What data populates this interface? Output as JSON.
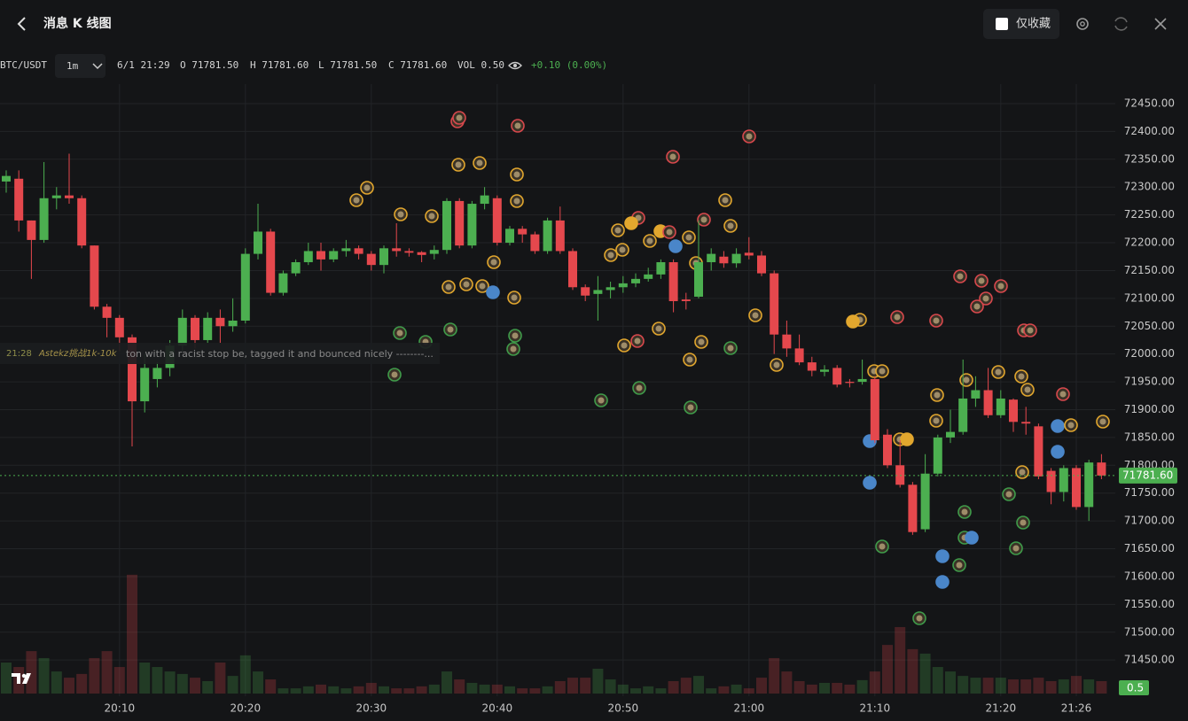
{
  "header": {
    "title": "消息 K 线图",
    "favorites_only": "仅收藏"
  },
  "toolbar": {
    "symbol": "BTC/USDT",
    "interval": "1m",
    "time": "6/1 21:29",
    "open": "O 71781.50",
    "high": "H 71781.60",
    "low": "L 71781.50",
    "close": "C 71781.60",
    "volume": "VOL 0.50",
    "change": "+0.10 (0.00%)"
  },
  "tooltip": {
    "time": "21:28",
    "author": "Astekz挑战1k-10k",
    "text": "ton with a racist stop be, tagged it and bounced nicely --------..."
  },
  "chart_data": {
    "type": "candlestick",
    "categories": [
      null,
      null,
      null,
      null,
      null,
      null,
      null,
      null,
      null,
      "20:10",
      null,
      null,
      null,
      null,
      null,
      null,
      null,
      null,
      null,
      "20:20",
      null,
      null,
      null,
      null,
      null,
      null,
      null,
      null,
      null,
      "20:30",
      null,
      null,
      null,
      null,
      null,
      null,
      null,
      null,
      null,
      "20:40",
      null,
      null,
      null,
      null,
      null,
      null,
      null,
      null,
      null,
      "20:50",
      null,
      null,
      null,
      null,
      null,
      null,
      null,
      null,
      null,
      "21:00",
      null,
      null,
      null,
      null,
      null,
      null,
      null,
      null,
      null,
      "21:10",
      null,
      null,
      null,
      null,
      null,
      null,
      null,
      null,
      null,
      "21:20",
      null,
      null,
      null,
      null,
      null,
      "21:26",
      null,
      null
    ],
    "open": [
      72310,
      72315,
      72240,
      72205,
      72280,
      72285,
      72280,
      72195,
      72085,
      72065,
      72030,
      71915,
      71955,
      71975,
      72015,
      72065,
      72025,
      72065,
      72050,
      72060,
      72180,
      72220,
      72110,
      72145,
      72165,
      72185,
      72170,
      72185,
      72190,
      72180,
      72160,
      72190,
      72185,
      72183,
      72180,
      72187,
      72275,
      72195,
      72270,
      72280,
      72200,
      72225,
      72215,
      72185,
      72240,
      72185,
      72120,
      72108,
      72115,
      72120,
      72127,
      72135,
      72143,
      72165,
      72098,
      72103,
      72165,
      72175,
      72163,
      72182,
      72177,
      72145,
      72035,
      72010,
      71985,
      71968,
      71975,
      71950,
      71950,
      71955,
      71855,
      71800,
      71765,
      71685,
      71785,
      71850,
      71860,
      71920,
      71935,
      71890,
      71918,
      71878,
      71870,
      71790,
      71752,
      71795,
      71725,
      71805
    ],
    "high": [
      72330,
      72330,
      72240,
      72345,
      72300,
      72360,
      72285,
      72195,
      72090,
      72070,
      72035,
      72000,
      71985,
      72025,
      72080,
      72070,
      72075,
      72080,
      72100,
      72190,
      72270,
      72225,
      72150,
      72170,
      72200,
      72200,
      72190,
      72205,
      72195,
      72185,
      72195,
      72235,
      72190,
      72185,
      72195,
      72280,
      72280,
      72275,
      72300,
      72285,
      72230,
      72230,
      72220,
      72245,
      72265,
      72190,
      72125,
      72140,
      72130,
      72140,
      72145,
      72155,
      72170,
      72170,
      72110,
      72240,
      72190,
      72185,
      72190,
      72210,
      72185,
      72150,
      72060,
      72035,
      71995,
      71980,
      71980,
      71955,
      71990,
      71960,
      71865,
      71845,
      71770,
      71820,
      71855,
      71900,
      71990,
      71960,
      71975,
      71935,
      71920,
      71905,
      71875,
      71795,
      71800,
      71800,
      71810,
      71820
    ],
    "low": [
      72290,
      72220,
      72135,
      72200,
      72260,
      72270,
      72190,
      72080,
      72030,
      72005,
      71834,
      71895,
      71940,
      71960,
      72005,
      72010,
      72020,
      72020,
      72040,
      72055,
      72170,
      72105,
      72105,
      72140,
      72160,
      72150,
      72165,
      72175,
      72170,
      72150,
      72145,
      72175,
      72175,
      72165,
      72170,
      72180,
      72190,
      72190,
      72260,
      72195,
      72195,
      72200,
      72180,
      72180,
      72180,
      72115,
      72095,
      72060,
      72100,
      72110,
      72120,
      72130,
      72135,
      72075,
      72080,
      72100,
      72150,
      72155,
      72155,
      72170,
      72140,
      72000,
      71995,
      71980,
      71960,
      71960,
      71940,
      71940,
      71945,
      71840,
      71795,
      71760,
      71675,
      71680,
      71780,
      71840,
      71855,
      71905,
      71885,
      71885,
      71860,
      71855,
      71775,
      71730,
      71735,
      71720,
      71700,
      71775
    ],
    "close": [
      72320,
      72240,
      72205,
      72280,
      72285,
      72280,
      72195,
      72085,
      72065,
      72030,
      71915,
      71975,
      71975,
      72015,
      72065,
      72025,
      72065,
      72050,
      72060,
      72180,
      72220,
      72110,
      72145,
      72165,
      72185,
      72170,
      72185,
      72190,
      72180,
      72160,
      72190,
      72185,
      72182,
      72178,
      72187,
      72275,
      72195,
      72270,
      72285,
      72200,
      72225,
      72215,
      72185,
      72240,
      72185,
      72120,
      72105,
      72115,
      72120,
      72127,
      72135,
      72143,
      72165,
      72095,
      72095,
      72165,
      72180,
      72163,
      72180,
      72177,
      72145,
      72035,
      72010,
      71985,
      71970,
      71972,
      71945,
      71948,
      71955,
      71845,
      71800,
      71765,
      71680,
      71785,
      71850,
      71860,
      71920,
      71935,
      71890,
      71920,
      71878,
      71875,
      71780,
      71752,
      71795,
      71725,
      71805,
      71781.6
    ],
    "last_price_label": "71781.60",
    "volume": {
      "values": [
        1.25,
        1.07,
        1.71,
        1.43,
        0.89,
        0.64,
        0.79,
        1.43,
        1.71,
        1.07,
        4.79,
        1.25,
        1.07,
        0.89,
        0.79,
        0.64,
        0.5,
        1.25,
        0.71,
        1.54,
        0.89,
        0.57,
        0.21,
        0.21,
        0.29,
        0.36,
        0.29,
        0.21,
        0.29,
        0.43,
        0.29,
        0.21,
        0.21,
        0.29,
        0.36,
        0.89,
        0.57,
        0.43,
        0.36,
        0.36,
        0.29,
        0.21,
        0.21,
        0.29,
        0.5,
        0.64,
        0.64,
        1.0,
        0.57,
        0.36,
        0.21,
        0.29,
        0.21,
        0.5,
        0.64,
        0.71,
        0.21,
        0.29,
        0.36,
        0.21,
        0.64,
        1.43,
        0.89,
        0.5,
        0.36,
        0.43,
        0.43,
        0.36,
        0.54,
        0.89,
        1.96,
        2.68,
        1.79,
        1.61,
        1.07,
        0.89,
        0.71,
        0.64,
        0.64,
        0.64,
        0.57,
        0.57,
        0.64,
        0.5,
        0.57,
        0.71,
        0.57,
        0.5
      ],
      "ylim": [
        0,
        5
      ]
    },
    "ylim": [
      71385,
      72485
    ],
    "yticks": [
      {
        "value": 72450,
        "label": "72450.00"
      },
      {
        "value": 72400,
        "label": "72400.00"
      },
      {
        "value": 72350,
        "label": "72350.00"
      },
      {
        "value": 72300,
        "label": "72300.00"
      },
      {
        "value": 72250,
        "label": "72250.00"
      },
      {
        "value": 72200,
        "label": "72200.00"
      },
      {
        "value": 72150,
        "label": "72150.00"
      },
      {
        "value": 72100,
        "label": "72100.00"
      },
      {
        "value": 72050,
        "label": "72050.00"
      },
      {
        "value": 72000,
        "label": "72000.00"
      },
      {
        "value": 71950,
        "label": "71950.00"
      },
      {
        "value": 71900,
        "label": "71900.00"
      },
      {
        "value": 71850,
        "label": "71850.00"
      },
      {
        "value": 71800,
        "label": "71800.00"
      },
      {
        "value": 71750,
        "label": "71750.00"
      },
      {
        "value": 71700,
        "label": "71700.00"
      },
      {
        "value": 71650,
        "label": "71650.00"
      },
      {
        "value": 71600,
        "label": "71600.00"
      },
      {
        "value": 71550,
        "label": "71550.00"
      },
      {
        "value": 71500,
        "label": "71500.00"
      },
      {
        "value": 71450,
        "label": "71450.00"
      }
    ],
    "up_color": "#4caf50",
    "down_color": "#e5484d",
    "grid": true
  }
}
